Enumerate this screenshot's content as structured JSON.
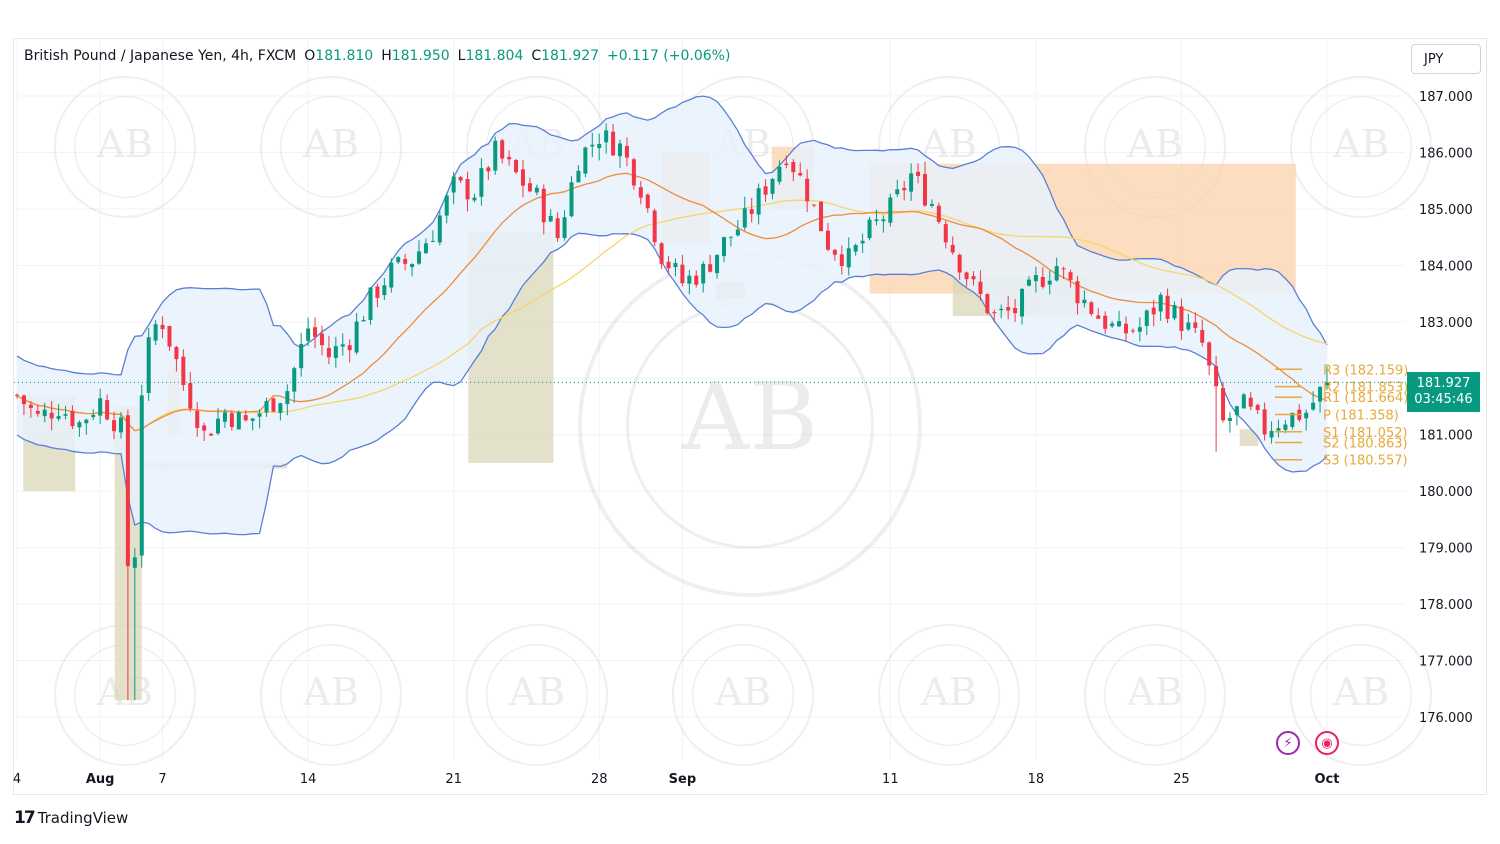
{
  "header": {
    "symbol": "British Pound / Japanese Yen, 4h, FXCM",
    "o_label": "O",
    "o_value": "181.810",
    "h_label": "H",
    "h_value": "181.950",
    "l_label": "L",
    "l_value": "181.804",
    "c_label": "C",
    "c_value": "181.927",
    "change": "+0.117 (+0.06%)"
  },
  "currency_label": "JPY",
  "last_price": {
    "price": "181.927",
    "countdown": "03:45:46"
  },
  "branding": {
    "logo_mark": "17",
    "logo_text": "TradingView",
    "watermark_text": "AB"
  },
  "icons": {
    "alert": "bolt-icon",
    "replay": "record-icon"
  },
  "colors": {
    "up": "#089981",
    "down": "#f23645",
    "bb_band": "#5b7fd4",
    "bb_fill": "#e8f1fb",
    "ema_orange": "#f08c3a",
    "ma_yellow": "#f5d66b",
    "zone_supply": "#fbd2a9",
    "zone_demand": "#d9d7b8",
    "pivot": "#e6a93a",
    "accent": "#089981"
  },
  "chart_data": {
    "type": "candlestick",
    "title": "British Pound / Japanese Yen, 4h, FXCM",
    "ylim": [
      175.2,
      187.6
    ],
    "y_ticks": [
      "187.000",
      "186.000",
      "185.000",
      "184.000",
      "183.000",
      "182.000",
      "181.000",
      "180.000",
      "179.000",
      "178.000",
      "177.000",
      "176.000"
    ],
    "x_tick_labels": [
      {
        "label": "4",
        "day": 0,
        "bold": false
      },
      {
        "label": "Aug",
        "day": 4,
        "bold": true
      },
      {
        "label": "7",
        "day": 7,
        "bold": false
      },
      {
        "label": "14",
        "day": 14,
        "bold": false
      },
      {
        "label": "21",
        "day": 21,
        "bold": false
      },
      {
        "label": "28",
        "day": 28,
        "bold": false
      },
      {
        "label": "Sep",
        "day": 32,
        "bold": true
      },
      {
        "label": "11",
        "day": 42,
        "bold": false
      },
      {
        "label": "18",
        "day": 49,
        "bold": false
      },
      {
        "label": "25",
        "day": 56,
        "bold": false
      },
      {
        "label": "Oct",
        "day": 63,
        "bold": true
      }
    ],
    "price_anchors": [
      [
        0,
        181.7
      ],
      [
        1,
        181.3
      ],
      [
        2,
        181.5
      ],
      [
        3,
        181.2
      ],
      [
        4,
        181.6
      ],
      [
        5,
        181.1
      ],
      [
        5.5,
        177.5
      ],
      [
        6,
        181.8
      ],
      [
        6.5,
        182.9
      ],
      [
        7,
        183.0
      ],
      [
        7.5,
        182.5
      ],
      [
        8,
        181.9
      ],
      [
        8.5,
        181.5
      ],
      [
        9,
        181.0
      ],
      [
        10,
        181.4
      ],
      [
        11,
        181.2
      ],
      [
        12,
        181.5
      ],
      [
        13,
        181.8
      ],
      [
        14,
        182.9
      ],
      [
        15,
        182.4
      ],
      [
        16,
        182.7
      ],
      [
        17,
        183.4
      ],
      [
        18,
        183.9
      ],
      [
        19,
        184.1
      ],
      [
        20,
        184.6
      ],
      [
        21,
        185.4
      ],
      [
        22,
        185.3
      ],
      [
        23,
        186.0
      ],
      [
        24,
        185.6
      ],
      [
        25,
        185.2
      ],
      [
        26,
        184.5
      ],
      [
        27,
        185.9
      ],
      [
        28,
        186.3
      ],
      [
        29,
        186.1
      ],
      [
        30,
        185.4
      ],
      [
        31,
        184.2
      ],
      [
        32,
        183.7
      ],
      [
        33,
        183.9
      ],
      [
        34,
        184.4
      ],
      [
        35,
        184.8
      ],
      [
        36,
        185.4
      ],
      [
        37,
        186.0
      ],
      [
        38,
        185.3
      ],
      [
        39,
        184.4
      ],
      [
        40,
        184.1
      ],
      [
        41,
        184.6
      ],
      [
        42,
        185.0
      ],
      [
        43,
        185.6
      ],
      [
        44,
        185.1
      ],
      [
        45,
        184.3
      ],
      [
        46,
        183.6
      ],
      [
        47,
        183.1
      ],
      [
        48,
        183.2
      ],
      [
        49,
        183.7
      ],
      [
        50,
        184.0
      ],
      [
        51,
        183.5
      ],
      [
        52,
        183.1
      ],
      [
        53,
        182.8
      ],
      [
        54,
        182.9
      ],
      [
        55,
        183.4
      ],
      [
        56,
        183.0
      ],
      [
        57,
        182.6
      ],
      [
        58,
        181.2
      ],
      [
        59,
        181.5
      ],
      [
        60,
        181.1
      ],
      [
        61,
        181.3
      ],
      [
        62,
        181.4
      ],
      [
        63,
        181.93
      ]
    ],
    "pivots": [
      {
        "label": "R3",
        "value": 182.159
      },
      {
        "label": "R2",
        "value": 181.853
      },
      {
        "label": "R1",
        "value": 181.664
      },
      {
        "label": "P",
        "value": 181.358
      },
      {
        "label": "S1",
        "value": 181.052
      },
      {
        "label": "S2",
        "value": 180.863
      },
      {
        "label": "S3",
        "value": 180.557
      }
    ],
    "last_close": 181.927
  }
}
